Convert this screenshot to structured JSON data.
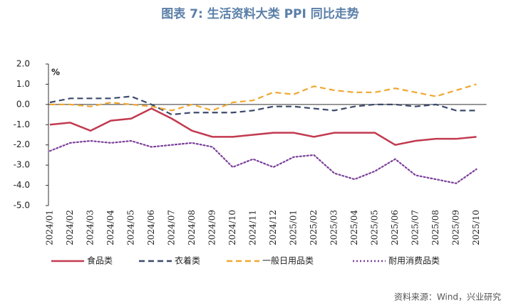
{
  "chart_data": {
    "type": "line",
    "title": "图表 7:  生活资料大类 PPI 同比走势",
    "unit": "%",
    "source": "资料来源：Wind，兴业研究",
    "categories": [
      "2024/01",
      "2024/02",
      "2024/03",
      "2024/04",
      "2024/05",
      "2024/06",
      "2024/07",
      "2024/08",
      "2024/09",
      "2024/10",
      "2024/11",
      "2024/12",
      "2025/01",
      "2025/02",
      "2025/03",
      "2025/04",
      "2025/05",
      "2025/06",
      "2025/07",
      "2025/08",
      "2025/09",
      "2025/10"
    ],
    "series": [
      {
        "name": "食品类",
        "color": "#c23a50",
        "dash": "solid",
        "values": [
          -1.0,
          -0.9,
          -1.3,
          -0.8,
          -0.7,
          -0.2,
          -0.7,
          -1.3,
          -1.6,
          -1.6,
          -1.5,
          -1.4,
          -1.4,
          -1.6,
          -1.4,
          -1.4,
          -1.4,
          -2.0,
          -1.8,
          -1.7,
          -1.7,
          -1.6
        ]
      },
      {
        "name": "衣着类",
        "color": "#3b4a6b",
        "dash": "dash",
        "values": [
          0.1,
          0.3,
          0.3,
          0.3,
          0.4,
          0.0,
          -0.5,
          -0.4,
          -0.4,
          -0.4,
          -0.3,
          -0.1,
          -0.1,
          -0.2,
          -0.3,
          -0.1,
          0.0,
          0.0,
          -0.1,
          0.0,
          -0.3,
          -0.3
        ]
      },
      {
        "name": "一般日用品类",
        "color": "#f0a830",
        "dash": "dash",
        "values": [
          0.0,
          0.0,
          -0.1,
          0.1,
          0.0,
          -0.1,
          -0.3,
          0.0,
          -0.3,
          0.1,
          0.2,
          0.6,
          0.5,
          0.9,
          0.7,
          0.6,
          0.6,
          0.8,
          0.6,
          0.4,
          0.7,
          1.0
        ]
      },
      {
        "name": "耐用消费品类",
        "color": "#7b3f9a",
        "dash": "dot",
        "values": [
          -2.3,
          -1.9,
          -1.8,
          -1.9,
          -1.8,
          -2.1,
          -2.0,
          -1.9,
          -2.1,
          -3.1,
          -2.7,
          -3.1,
          -2.6,
          -2.5,
          -3.4,
          -3.7,
          -3.3,
          -2.7,
          -3.5,
          -3.7,
          -3.9,
          -3.2
        ]
      }
    ],
    "ylim": [
      -5,
      2
    ],
    "yticks": [
      {
        "value": 2,
        "label": "2.0"
      },
      {
        "value": 1,
        "label": "1.0"
      },
      {
        "value": 0,
        "label": "0.0"
      },
      {
        "value": -1,
        "label": "-1.0"
      },
      {
        "value": -2,
        "label": "-2.0"
      },
      {
        "value": -3,
        "label": "-3.0"
      },
      {
        "value": -4,
        "label": "-4.0"
      },
      {
        "value": -5,
        "label": "-5.0"
      }
    ]
  }
}
